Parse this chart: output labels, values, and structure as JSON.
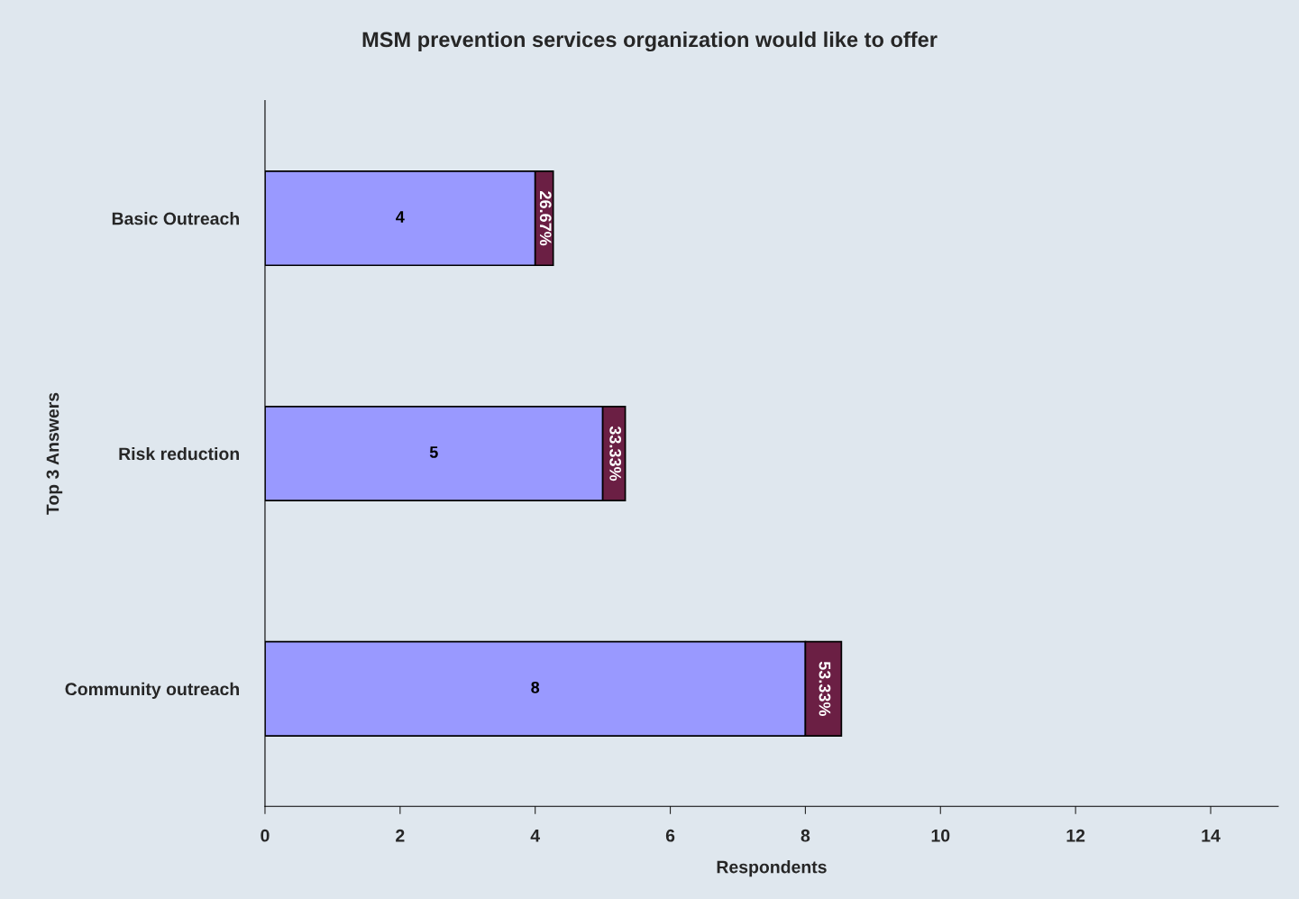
{
  "chart_data": {
    "type": "bar",
    "orientation": "horizontal",
    "stacked": true,
    "title": "MSM prevention services organization would like to offer",
    "xlabel": "Respondents",
    "ylabel": "Top 3 Answers",
    "categories": [
      "Basic Outreach",
      "Risk reduction",
      "Community outreach"
    ],
    "series": [
      {
        "color": "#9999ff",
        "values": [
          4,
          5,
          8
        ],
        "value_labels": [
          "4",
          "5",
          "8"
        ]
      },
      {
        "color": "#6b1f44",
        "values": [
          0.2667,
          0.3333,
          0.5333
        ],
        "value_labels": [
          "26.67%",
          "33.33%",
          "53.33%"
        ]
      }
    ],
    "xlim": [
      0,
      15
    ],
    "xticks": [
      0,
      2,
      4,
      6,
      8,
      10,
      12,
      14
    ],
    "grid": false,
    "legend": false
  }
}
